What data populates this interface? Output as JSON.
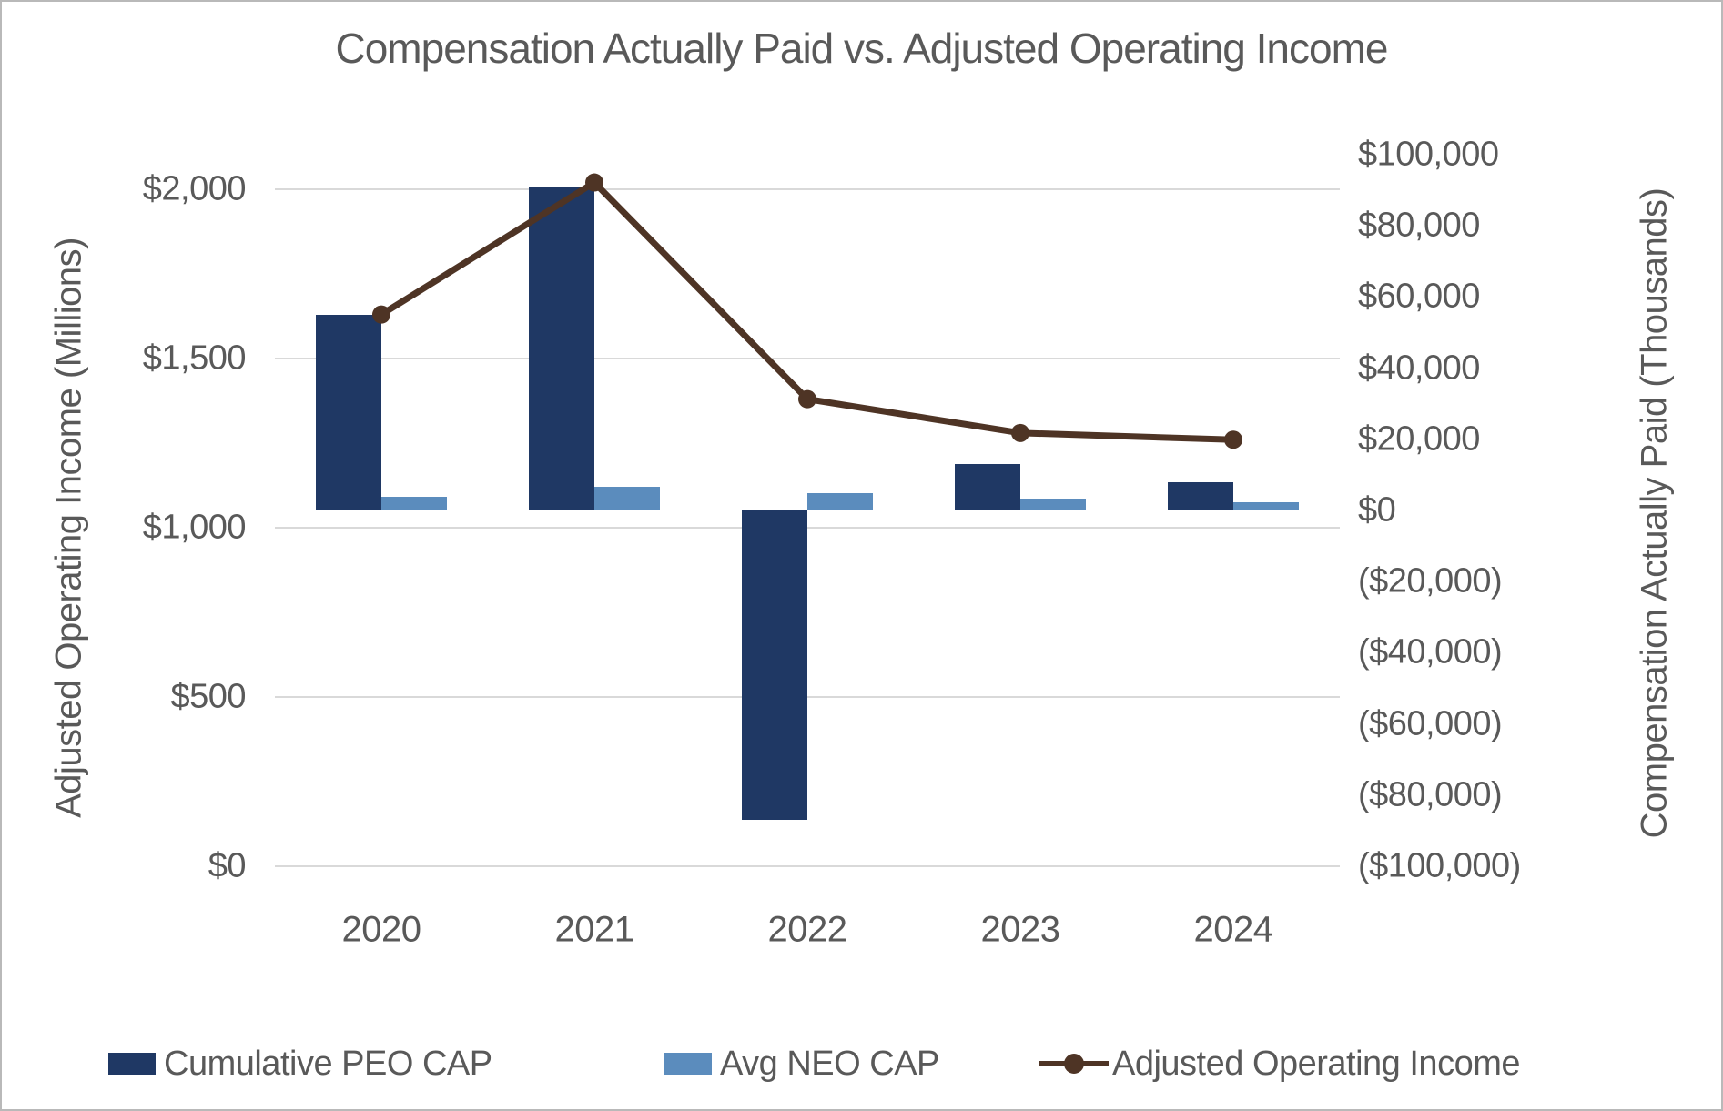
{
  "title": "Compensation Actually Paid vs. Adjusted Operating Income",
  "left_axis": {
    "title": "Adjusted Operating Income (Millions)",
    "ticks": [
      "$2,000",
      "$1,500",
      "$1,000",
      "$500",
      "$0"
    ],
    "min": 0,
    "max": 2000,
    "tick_step": 500
  },
  "right_axis": {
    "title": "Compensation Actually Paid (Thousands)",
    "ticks": [
      "$100,000",
      "$80,000",
      "$60,000",
      "$40,000",
      "$20,000",
      "$0",
      "($20,000)",
      "($40,000)",
      "($60,000)",
      "($80,000)",
      "($100,000)"
    ],
    "min": -100000,
    "max": 100000,
    "tick_step": 20000
  },
  "legend": [
    {
      "label": "Cumulative PEO CAP",
      "marker": "navy-square"
    },
    {
      "label": "Avg NEO CAP",
      "marker": "blue-square"
    },
    {
      "label": "Adjusted Operating Income",
      "marker": "brown-line-dot"
    }
  ],
  "colors": {
    "peo_bar": "#1f3864",
    "neo_bar": "#5b8cbd",
    "aoi_line": "#4e3425",
    "text": "#595959",
    "gridline": "#d9d9d9"
  },
  "chart_data": {
    "type": "combo",
    "title": "Compensation Actually Paid vs. Adjusted Operating Income",
    "categories": [
      "2020",
      "2021",
      "2022",
      "2023",
      "2024"
    ],
    "series": [
      {
        "name": "Cumulative PEO CAP",
        "type": "bar",
        "axis": "right",
        "color": "#1f3864",
        "values": [
          55000,
          91000,
          -87000,
          13000,
          8000
        ]
      },
      {
        "name": "Avg NEO CAP",
        "type": "bar",
        "axis": "right",
        "color": "#5b8cbd",
        "values": [
          3800,
          6700,
          4900,
          3300,
          2300
        ]
      },
      {
        "name": "Adjusted Operating Income",
        "type": "line",
        "axis": "left",
        "color": "#4e3425",
        "values": [
          1630,
          2020,
          1380,
          1280,
          1260
        ]
      }
    ],
    "left_axis_label": "Adjusted Operating Income (Millions)",
    "right_axis_label": "Compensation Actually Paid (Thousands)",
    "left_ylim": [
      0,
      2000
    ],
    "right_ylim": [
      -100000,
      100000
    ],
    "grid": "horizontal gridlines at left-axis ticks only",
    "legend_position": "bottom"
  }
}
